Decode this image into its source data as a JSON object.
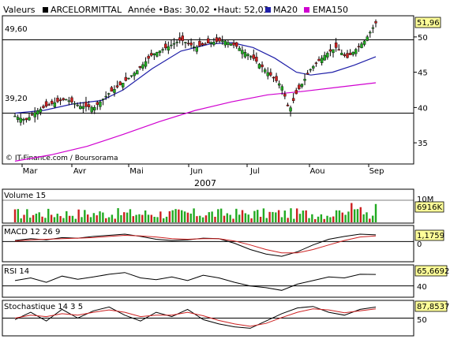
{
  "header": {
    "label": "Valeurs",
    "name": "ARCELORMITTAL",
    "range": "Année •Bas: 30,02 •Haut: 52,03",
    "ma_label": "MA20",
    "ema_label": "EMA150",
    "ma_color": "#1f1fa8",
    "ema_color": "#d000d0"
  },
  "chart_data": [
    {
      "type": "candlestick",
      "title": "",
      "ylim": [
        32,
        53
      ],
      "y_ticks": [
        "35",
        "40",
        "45",
        "50"
      ],
      "x_ticks": [
        "Mar",
        "Avr",
        "Mai",
        "Jun",
        "Jul",
        "Aou",
        "Sep"
      ],
      "year_label": "2007",
      "source_label": "© IT-Finance.com / Boursorama",
      "last_value": "51,96",
      "hlines": [
        {
          "label": "49,60",
          "value": 49.6
        },
        {
          "label": "39,20",
          "value": 39.2
        }
      ],
      "series": [
        {
          "name": "MA20",
          "color": "#1f1fa8",
          "values": [
            [
              0,
              39.2
            ],
            [
              0.08,
              39.6
            ],
            [
              0.16,
              40.5
            ],
            [
              0.24,
              41.0
            ],
            [
              0.3,
              42.5
            ],
            [
              0.38,
              45.5
            ],
            [
              0.46,
              48.0
            ],
            [
              0.54,
              49.0
            ],
            [
              0.6,
              49.2
            ],
            [
              0.66,
              48.5
            ],
            [
              0.72,
              47.0
            ],
            [
              0.78,
              45.0
            ],
            [
              0.82,
              44.6
            ],
            [
              0.88,
              45.0
            ],
            [
              0.94,
              46.0
            ],
            [
              1.0,
              47.2
            ]
          ]
        },
        {
          "name": "EMA150",
          "color": "#d000d0",
          "values": [
            [
              0,
              32.4
            ],
            [
              0.1,
              33.3
            ],
            [
              0.2,
              34.5
            ],
            [
              0.3,
              36.2
            ],
            [
              0.4,
              38.0
            ],
            [
              0.5,
              39.6
            ],
            [
              0.6,
              40.8
            ],
            [
              0.7,
              41.8
            ],
            [
              0.8,
              42.3
            ],
            [
              0.9,
              42.9
            ],
            [
              1.0,
              43.5
            ]
          ]
        }
      ],
      "price_path": [
        [
          0,
          38.8
        ],
        [
          0.03,
          38.2
        ],
        [
          0.06,
          39.5
        ],
        [
          0.1,
          40.5
        ],
        [
          0.14,
          41.2
        ],
        [
          0.18,
          40.2
        ],
        [
          0.22,
          40.0
        ],
        [
          0.26,
          42.0
        ],
        [
          0.3,
          43.5
        ],
        [
          0.34,
          45.3
        ],
        [
          0.38,
          47.5
        ],
        [
          0.42,
          48.5
        ],
        [
          0.46,
          49.6
        ],
        [
          0.5,
          48.5
        ],
        [
          0.54,
          49.2
        ],
        [
          0.58,
          49.5
        ],
        [
          0.62,
          48.5
        ],
        [
          0.66,
          47.0
        ],
        [
          0.7,
          45.0
        ],
        [
          0.74,
          43.0
        ],
        [
          0.76,
          39.5
        ],
        [
          0.78,
          42.0
        ],
        [
          0.82,
          45.5
        ],
        [
          0.86,
          47.5
        ],
        [
          0.89,
          48.5
        ],
        [
          0.92,
          47.0
        ],
        [
          0.95,
          48.5
        ],
        [
          0.97,
          49.5
        ],
        [
          1.0,
          51.96
        ]
      ]
    },
    {
      "type": "bar",
      "name": "Volume 15",
      "last_value": "6916K",
      "axis_label": "10M",
      "colors": [
        "#cc2020",
        "#22aa22"
      ],
      "bars": 120
    },
    {
      "type": "line",
      "name": "MACD 12 26 9",
      "last_value": "1,1759",
      "y_ticks": [
        "0"
      ],
      "series": [
        {
          "name": "macd",
          "color": "#000000",
          "values": [
            0.2,
            0.5,
            0.3,
            0.7,
            0.6,
            0.9,
            1.1,
            1.3,
            0.9,
            0.4,
            0.2,
            0.3,
            0.6,
            0.5,
            -0.3,
            -1.4,
            -2.2,
            -2.6,
            -1.8,
            -0.6,
            0.4,
            0.9,
            1.3,
            1.18
          ]
        },
        {
          "name": "signal",
          "color": "#cc2020",
          "values": [
            0.1,
            0.3,
            0.4,
            0.5,
            0.6,
            0.7,
            0.9,
            1.1,
            1.0,
            0.8,
            0.5,
            0.4,
            0.5,
            0.5,
            0.1,
            -0.6,
            -1.4,
            -2.0,
            -2.0,
            -1.4,
            -0.6,
            0.2,
            0.8,
            1.0
          ]
        }
      ]
    },
    {
      "type": "line",
      "name": "RSI 14",
      "last_value": "65,6692",
      "y_ticks": [
        "40"
      ],
      "series": [
        {
          "name": "rsi",
          "color": "#000000",
          "values": [
            52,
            58,
            48,
            62,
            55,
            60,
            66,
            70,
            58,
            54,
            60,
            52,
            64,
            58,
            48,
            40,
            36,
            30,
            44,
            52,
            60,
            58,
            66,
            65.7
          ]
        }
      ]
    },
    {
      "type": "line",
      "name": "Stochastique 14 3 5",
      "last_value": "87,8537",
      "y_ticks": [
        "50"
      ],
      "series": [
        {
          "name": "k",
          "color": "#000000",
          "values": [
            45,
            70,
            40,
            80,
            50,
            75,
            88,
            60,
            40,
            70,
            55,
            80,
            45,
            30,
            20,
            15,
            40,
            65,
            85,
            90,
            70,
            60,
            80,
            87.9
          ]
        },
        {
          "name": "d",
          "color": "#cc2020",
          "values": [
            50,
            60,
            55,
            65,
            60,
            70,
            78,
            70,
            55,
            60,
            60,
            70,
            58,
            42,
            30,
            22,
            32,
            52,
            70,
            82,
            78,
            68,
            75,
            82
          ]
        }
      ]
    }
  ]
}
